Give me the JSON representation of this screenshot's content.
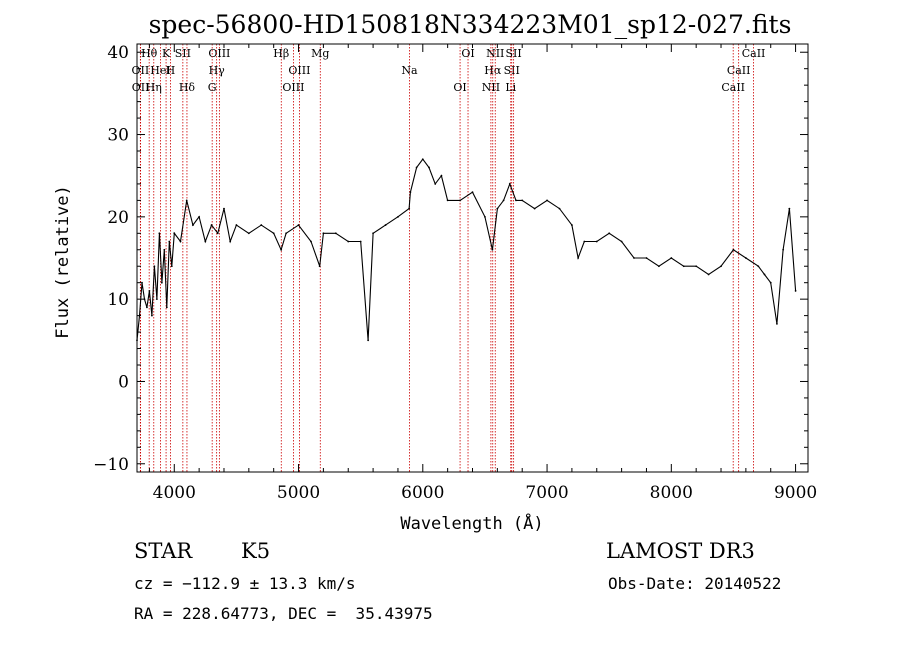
{
  "chart_data": {
    "type": "line",
    "title": "spec-56800-HD150818N334223M01_sp12-027.fits",
    "xlabel": "Wavelength (Å)",
    "ylabel": "Flux (relative)",
    "xlim": [
      3700,
      9100
    ],
    "ylim": [
      -11,
      41
    ],
    "xticks": [
      4000,
      5000,
      6000,
      7000,
      8000,
      9000
    ],
    "yticks": [
      -10,
      0,
      10,
      20,
      30,
      40
    ],
    "grid": false,
    "line_color": "#000000",
    "marker_color": "#cc0000",
    "series": [
      {
        "x": [
          3700,
          3720,
          3740,
          3760,
          3780,
          3800,
          3820,
          3840,
          3860,
          3880,
          3900,
          3920,
          3940,
          3960,
          3980,
          4000,
          4050,
          4100,
          4150,
          4200,
          4250,
          4300,
          4350,
          4400,
          4450,
          4500,
          4600,
          4700,
          4800,
          4860,
          4900,
          5000,
          5100,
          5170,
          5200,
          5300,
          5400,
          5500,
          5560,
          5600,
          5700,
          5800,
          5890,
          5900,
          5950,
          6000,
          6050,
          6100,
          6150,
          6200,
          6300,
          6400,
          6500,
          6560,
          6600,
          6650,
          6700,
          6750,
          6800,
          6900,
          7000,
          7100,
          7200,
          7250,
          7300,
          7400,
          7500,
          7600,
          7700,
          7800,
          7900,
          8000,
          8100,
          8200,
          8300,
          8400,
          8500,
          8600,
          8700,
          8750,
          8800,
          8850,
          8900,
          8950,
          9000
        ],
        "y": [
          5,
          8,
          12,
          10,
          9,
          11,
          8,
          14,
          10,
          18,
          12,
          16,
          9,
          17,
          14,
          18,
          17,
          22,
          19,
          20,
          17,
          19,
          18,
          21,
          17,
          19,
          18,
          19,
          18,
          16,
          18,
          19,
          17,
          14,
          18,
          18,
          17,
          17,
          5,
          18,
          19,
          20,
          21,
          23,
          26,
          27,
          26,
          24,
          25,
          22,
          22,
          23,
          20,
          16,
          21,
          22,
          24,
          22,
          22,
          21,
          22,
          21,
          19,
          15,
          17,
          17,
          18,
          17,
          15,
          15,
          14,
          15,
          14,
          14,
          13,
          14,
          16,
          15,
          14,
          13,
          12,
          7,
          16,
          21,
          11
        ]
      }
    ],
    "lines": [
      {
        "label": "Hθ",
        "x": 3798
      },
      {
        "label": "OII",
        "x": 3727
      },
      {
        "label": "OII",
        "x": 3729
      },
      {
        "label": "K",
        "x": 3934
      },
      {
        "label": "HeI",
        "x": 3889
      },
      {
        "label": "Hη",
        "x": 3835
      },
      {
        "label": "SII",
        "x": 4069
      },
      {
        "label": "H",
        "x": 3969
      },
      {
        "label": "Hδ",
        "x": 4102
      },
      {
        "label": "OIII",
        "x": 4363
      },
      {
        "label": "Hγ",
        "x": 4341
      },
      {
        "label": "G",
        "x": 4305
      },
      {
        "label": "Hβ",
        "x": 4861
      },
      {
        "label": "OIII",
        "x": 5007
      },
      {
        "label": "OIII",
        "x": 4959
      },
      {
        "label": "Mg",
        "x": 5175
      },
      {
        "label": "Na",
        "x": 5893
      },
      {
        "label": "OI",
        "x": 6300
      },
      {
        "label": "OI",
        "x": 6364
      },
      {
        "label": "Hα",
        "x": 6563
      },
      {
        "label": "NII",
        "x": 6548
      },
      {
        "label": "NII",
        "x": 6583
      },
      {
        "label": "SII",
        "x": 6716
      },
      {
        "label": "Li",
        "x": 6708
      },
      {
        "label": "SII",
        "x": 6731
      },
      {
        "label": "CaII",
        "x": 8542
      },
      {
        "label": "CaII",
        "x": 8498
      },
      {
        "label": "CaII",
        "x": 8662
      }
    ]
  },
  "info": {
    "class": "STAR",
    "subclass": "K5",
    "survey": "LAMOST DR3",
    "cz": "cz = −112.9 ± 13.3 km/s",
    "obs_date": "Obs-Date: 20140522",
    "coords": "RA = 228.64773, DEC =  35.43975"
  }
}
